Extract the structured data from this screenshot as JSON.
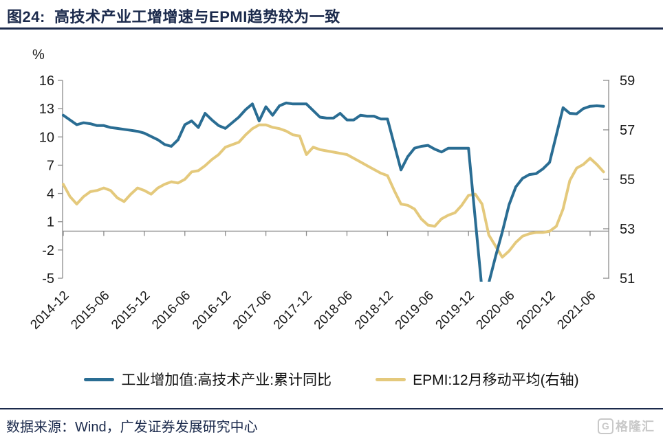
{
  "page": {
    "title": "图24:  高技术产业工增增速与EPMI趋势较为一致",
    "source": "数据来源：Wind，广发证券发展研究中心",
    "logo_letter": "G",
    "logo_text": "格隆汇"
  },
  "colors": {
    "navy": "#1b2a4c",
    "blue_line": "#2a6d93",
    "yellow_line": "#e4c97c",
    "axis_gray": "#8c8c8c",
    "logo_gray": "#c9c9c9"
  },
  "chart_data": {
    "type": "line",
    "title": "高技术产业工增增速与EPMI趋势较为一致",
    "legend_position": "bottom",
    "grid": false,
    "left_axis": {
      "label": "%",
      "range": [
        -5,
        16
      ],
      "ticks": [
        16,
        13,
        10,
        7,
        4,
        1,
        -2,
        -5
      ]
    },
    "right_axis": {
      "range": [
        51,
        59
      ],
      "ticks": [
        59,
        57,
        55,
        53,
        51
      ]
    },
    "x_ticks": [
      "2014-12",
      "2015-06",
      "2015-12",
      "2016-06",
      "2016-12",
      "2017-06",
      "2017-12",
      "2018-06",
      "2018-12",
      "2019-06",
      "2019-12",
      "2020-06",
      "2020-12",
      "2021-06"
    ],
    "series": [
      {
        "name": "工业增加值:高技术产业:累计同比",
        "axis": "left",
        "color": "#2a6d93",
        "points": [
          [
            "2014-12",
            12.3
          ],
          [
            "2015-02",
            11.3
          ],
          [
            "2015-03",
            11.5
          ],
          [
            "2015-04",
            11.4
          ],
          [
            "2015-05",
            11.2
          ],
          [
            "2015-06",
            11.2
          ],
          [
            "2015-07",
            11.0
          ],
          [
            "2015-08",
            10.9
          ],
          [
            "2015-09",
            10.8
          ],
          [
            "2015-10",
            10.7
          ],
          [
            "2015-11",
            10.6
          ],
          [
            "2015-12",
            10.4
          ],
          [
            "2016-02",
            9.7
          ],
          [
            "2016-03",
            9.2
          ],
          [
            "2016-04",
            9.0
          ],
          [
            "2016-05",
            9.7
          ],
          [
            "2016-06",
            11.3
          ],
          [
            "2016-07",
            11.7
          ],
          [
            "2016-08",
            11.0
          ],
          [
            "2016-09",
            12.5
          ],
          [
            "2016-10",
            11.8
          ],
          [
            "2016-11",
            11.2
          ],
          [
            "2016-12",
            10.9
          ],
          [
            "2017-02",
            12.1
          ],
          [
            "2017-03",
            12.9
          ],
          [
            "2017-04",
            13.5
          ],
          [
            "2017-05",
            11.7
          ],
          [
            "2017-06",
            13.2
          ],
          [
            "2017-07",
            12.3
          ],
          [
            "2017-08",
            13.3
          ],
          [
            "2017-09",
            13.6
          ],
          [
            "2017-10",
            13.5
          ],
          [
            "2017-11",
            13.5
          ],
          [
            "2017-12",
            13.5
          ],
          [
            "2018-02",
            12.1
          ],
          [
            "2018-03",
            12.0
          ],
          [
            "2018-04",
            12.0
          ],
          [
            "2018-05",
            12.5
          ],
          [
            "2018-06",
            11.8
          ],
          [
            "2018-07",
            11.8
          ],
          [
            "2018-08",
            12.3
          ],
          [
            "2018-09",
            12.2
          ],
          [
            "2018-10",
            12.2
          ],
          [
            "2018-11",
            11.9
          ],
          [
            "2018-12",
            11.9
          ],
          [
            "2019-02",
            6.5
          ],
          [
            "2019-03",
            7.9
          ],
          [
            "2019-04",
            8.8
          ],
          [
            "2019-05",
            9.0
          ],
          [
            "2019-06",
            9.1
          ],
          [
            "2019-07",
            8.7
          ],
          [
            "2019-08",
            8.4
          ],
          [
            "2019-09",
            8.8
          ],
          [
            "2019-10",
            8.8
          ],
          [
            "2019-11",
            8.8
          ],
          [
            "2019-12",
            8.8
          ],
          [
            "2020-02",
            -6.3
          ],
          [
            "2020-03",
            -5.5
          ],
          [
            "2020-04",
            -2.7
          ],
          [
            "2020-05",
            -0.1
          ],
          [
            "2020-06",
            2.8
          ],
          [
            "2020-07",
            4.7
          ],
          [
            "2020-08",
            5.6
          ],
          [
            "2020-09",
            6.0
          ],
          [
            "2020-10",
            6.1
          ],
          [
            "2020-11",
            6.6
          ],
          [
            "2020-12",
            7.3
          ],
          [
            "2021-02",
            13.1
          ],
          [
            "2021-03",
            12.5
          ],
          [
            "2021-04",
            12.45
          ],
          [
            "2021-05",
            13.0
          ],
          [
            "2021-06",
            13.25
          ],
          [
            "2021-07",
            13.3
          ],
          [
            "2021-08",
            13.25
          ]
        ]
      },
      {
        "name": "EPMI:12月移动平均(右轴)",
        "axis": "right",
        "color": "#e4c97c",
        "points": [
          [
            "2014-12",
            54.8
          ],
          [
            "2015-01",
            54.3
          ],
          [
            "2015-02",
            54.0
          ],
          [
            "2015-03",
            54.3
          ],
          [
            "2015-04",
            54.5
          ],
          [
            "2015-05",
            54.55
          ],
          [
            "2015-06",
            54.65
          ],
          [
            "2015-07",
            54.55
          ],
          [
            "2015-08",
            54.25
          ],
          [
            "2015-09",
            54.1
          ],
          [
            "2015-10",
            54.4
          ],
          [
            "2015-11",
            54.65
          ],
          [
            "2015-12",
            54.55
          ],
          [
            "2016-01",
            54.4
          ],
          [
            "2016-02",
            54.65
          ],
          [
            "2016-03",
            54.8
          ],
          [
            "2016-04",
            54.9
          ],
          [
            "2016-05",
            54.85
          ],
          [
            "2016-06",
            55.0
          ],
          [
            "2016-07",
            55.3
          ],
          [
            "2016-08",
            55.35
          ],
          [
            "2016-09",
            55.55
          ],
          [
            "2016-10",
            55.8
          ],
          [
            "2016-11",
            56.0
          ],
          [
            "2016-12",
            56.3
          ],
          [
            "2017-01",
            56.4
          ],
          [
            "2017-02",
            56.5
          ],
          [
            "2017-03",
            56.8
          ],
          [
            "2017-04",
            57.05
          ],
          [
            "2017-05",
            57.2
          ],
          [
            "2017-06",
            57.2
          ],
          [
            "2017-07",
            57.1
          ],
          [
            "2017-08",
            57.05
          ],
          [
            "2017-09",
            56.95
          ],
          [
            "2017-10",
            56.8
          ],
          [
            "2017-11",
            56.75
          ],
          [
            "2017-12",
            56.0
          ],
          [
            "2018-01",
            56.3
          ],
          [
            "2018-02",
            56.2
          ],
          [
            "2018-03",
            56.15
          ],
          [
            "2018-04",
            56.1
          ],
          [
            "2018-05",
            56.05
          ],
          [
            "2018-06",
            56.0
          ],
          [
            "2018-07",
            55.85
          ],
          [
            "2018-08",
            55.7
          ],
          [
            "2018-09",
            55.55
          ],
          [
            "2018-10",
            55.4
          ],
          [
            "2018-11",
            55.25
          ],
          [
            "2018-12",
            55.15
          ],
          [
            "2019-01",
            54.55
          ],
          [
            "2019-02",
            54.0
          ],
          [
            "2019-03",
            53.95
          ],
          [
            "2019-04",
            53.8
          ],
          [
            "2019-05",
            53.4
          ],
          [
            "2019-06",
            53.15
          ],
          [
            "2019-07",
            53.1
          ],
          [
            "2019-08",
            53.4
          ],
          [
            "2019-09",
            53.55
          ],
          [
            "2019-10",
            53.65
          ],
          [
            "2019-11",
            53.95
          ],
          [
            "2019-12",
            54.35
          ],
          [
            "2020-01",
            54.4
          ],
          [
            "2020-02",
            54.0
          ],
          [
            "2020-03",
            52.75
          ],
          [
            "2020-04",
            52.3
          ],
          [
            "2020-05",
            51.85
          ],
          [
            "2020-06",
            52.1
          ],
          [
            "2020-07",
            52.45
          ],
          [
            "2020-08",
            52.7
          ],
          [
            "2020-09",
            52.8
          ],
          [
            "2020-10",
            52.85
          ],
          [
            "2020-11",
            52.85
          ],
          [
            "2020-12",
            52.9
          ],
          [
            "2021-01",
            53.1
          ],
          [
            "2021-02",
            53.8
          ],
          [
            "2021-03",
            54.95
          ],
          [
            "2021-04",
            55.45
          ],
          [
            "2021-05",
            55.6
          ],
          [
            "2021-06",
            55.85
          ],
          [
            "2021-07",
            55.6
          ],
          [
            "2021-08",
            55.3
          ]
        ]
      }
    ]
  }
}
